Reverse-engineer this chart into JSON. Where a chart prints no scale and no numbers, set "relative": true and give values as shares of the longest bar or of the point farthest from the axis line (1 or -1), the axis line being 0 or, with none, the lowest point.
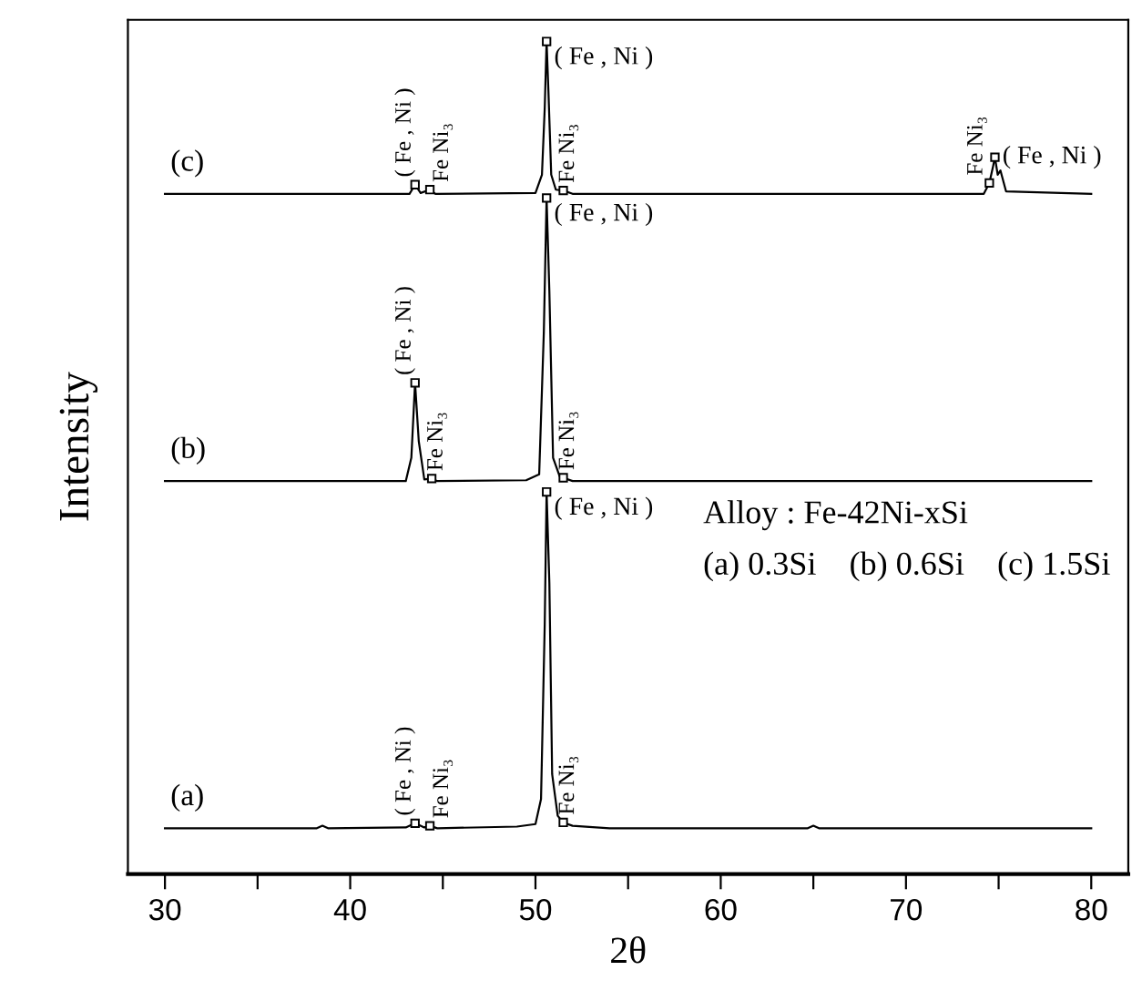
{
  "chart_data": {
    "type": "line",
    "relative": true,
    "xlabel": "2θ",
    "ylabel": "Intensity",
    "xlim": [
      28,
      82
    ],
    "xticks": [
      30,
      {
        "value": 35,
        "label": null
      },
      40,
      {
        "value": 45,
        "label": null
      },
      50,
      {
        "value": 55,
        "label": null
      },
      60,
      {
        "value": 65,
        "label": null
      },
      70,
      {
        "value": 75,
        "label": null
      },
      80
    ],
    "tick_labels": "x",
    "grid": false,
    "marker": "none",
    "line_style": "solid",
    "series": [
      {
        "name": "(a)",
        "color": "#000000",
        "x": [
          30,
          38.2,
          38.5,
          38.8,
          43.0,
          43.5,
          44.0,
          44.3,
          44.7,
          49.0,
          50.0,
          50.3,
          50.5,
          50.6,
          50.75,
          50.9,
          51.2,
          51.5,
          52.0,
          54.0,
          64.7,
          65.0,
          65.3,
          80
        ],
        "values": [
          0.055,
          0.055,
          0.058,
          0.055,
          0.056,
          0.061,
          0.056,
          0.058,
          0.055,
          0.057,
          0.06,
          0.09,
          0.3,
          0.459,
          0.35,
          0.12,
          0.07,
          0.062,
          0.058,
          0.055,
          0.055,
          0.058,
          0.055,
          0.055
        ]
      },
      {
        "name": "(b)",
        "color": "#000000",
        "x": [
          30,
          43.0,
          43.3,
          43.5,
          43.7,
          44.0,
          44.4,
          44.7,
          49.5,
          50.2,
          50.45,
          50.6,
          50.75,
          50.95,
          51.3,
          51.5,
          52.0,
          80
        ],
        "values": [
          0.472,
          0.472,
          0.5,
          0.59,
          0.52,
          0.474,
          0.475,
          0.472,
          0.473,
          0.48,
          0.65,
          0.812,
          0.7,
          0.5,
          0.478,
          0.476,
          0.472,
          0.472
        ]
      },
      {
        "name": "(c)",
        "color": "#000000",
        "x": [
          30,
          43.2,
          43.5,
          43.8,
          44.3,
          44.6,
          50.0,
          50.35,
          50.5,
          50.6,
          50.7,
          50.85,
          51.1,
          51.5,
          52.0,
          74.2,
          74.5,
          74.7,
          74.8,
          74.95,
          75.1,
          75.4,
          80
        ],
        "values": [
          0.817,
          0.817,
          0.828,
          0.818,
          0.822,
          0.817,
          0.818,
          0.84,
          0.92,
          1.0,
          0.94,
          0.84,
          0.822,
          0.821,
          0.817,
          0.817,
          0.83,
          0.85,
          0.861,
          0.84,
          0.845,
          0.82,
          0.817
        ]
      }
    ],
    "annotations": [
      {
        "text": "( Fe , Ni )",
        "x": 43.5,
        "y": 0.061
      },
      {
        "text": "Fe Ni₃",
        "x": 44.3,
        "y": 0.058
      },
      {
        "text": "( Fe , Ni )",
        "x": 50.6,
        "y": 0.459
      },
      {
        "text": "Fe Ni₃",
        "x": 51.5,
        "y": 0.062
      },
      {
        "text": "( Fe , Ni )",
        "x": 43.5,
        "y": 0.59
      },
      {
        "text": "Fe Ni₃",
        "x": 44.4,
        "y": 0.475
      },
      {
        "text": "( Fe , Ni )",
        "x": 50.6,
        "y": 0.812
      },
      {
        "text": "Fe Ni₃",
        "x": 51.5,
        "y": 0.476
      },
      {
        "text": "( Fe , Ni )",
        "x": 43.5,
        "y": 0.828
      },
      {
        "text": "Fe Ni₃",
        "x": 44.3,
        "y": 0.822
      },
      {
        "text": "( Fe , Ni )",
        "x": 50.6,
        "y": 1.0
      },
      {
        "text": "Fe Ni₃",
        "x": 51.5,
        "y": 0.821
      },
      {
        "text": "Fe Ni₃",
        "x": 74.5,
        "y": 0.83
      },
      {
        "text": "( Fe , Ni )",
        "x": 74.8,
        "y": 0.861
      },
      "Alloy : Fe-42Ni-xSi",
      "(a) 0.3Si    (b) 0.6Si    (c) 1.5Si"
    ]
  }
}
